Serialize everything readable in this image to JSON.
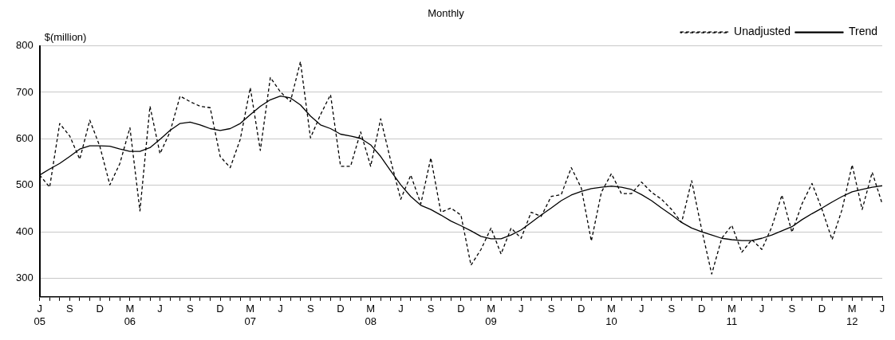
{
  "chart_data": {
    "type": "line",
    "title": "Monthly",
    "ylabel": "$(million)",
    "categories": [
      "J 05",
      null,
      null,
      "S",
      null,
      null,
      "D",
      null,
      null,
      "M 06",
      null,
      null,
      "J",
      null,
      null,
      "S",
      null,
      null,
      "D",
      null,
      null,
      "M 07",
      null,
      null,
      "J",
      null,
      null,
      "S",
      null,
      null,
      "D",
      null,
      null,
      "M 08",
      null,
      null,
      "J",
      null,
      null,
      "S",
      null,
      null,
      "D",
      null,
      null,
      "M 09",
      null,
      null,
      "J",
      null,
      null,
      "S",
      null,
      null,
      "D",
      null,
      null,
      "M 10",
      null,
      null,
      "J",
      null,
      null,
      "S",
      null,
      null,
      "D",
      null,
      null,
      "M 11",
      null,
      null,
      "J",
      null,
      null,
      "S",
      null,
      null,
      "D",
      null,
      null,
      "M 12",
      null,
      null,
      "J"
    ],
    "series": [
      {
        "name": "Unadjusted",
        "color": "#000000",
        "line_style": "dashed",
        "values": [
          522,
          496,
          633,
          606,
          556,
          640,
          584,
          501,
          547,
          624,
          445,
          670,
          568,
          615,
          692,
          680,
          670,
          667,
          562,
          538,
          599,
          710,
          575,
          732,
          701,
          680,
          766,
          602,
          652,
          695,
          541,
          541,
          615,
          541,
          643,
          553,
          470,
          522,
          460,
          559,
          442,
          451,
          436,
          328,
          362,
          408,
          352,
          408,
          386,
          442,
          433,
          476,
          480,
          538,
          494,
          380,
          485,
          525,
          482,
          482,
          507,
          485,
          470,
          448,
          420,
          510,
          405,
          309,
          386,
          414,
          356,
          383,
          362,
          411,
          479,
          399,
          460,
          504,
          448,
          383,
          448,
          544,
          448,
          528,
          460
        ]
      },
      {
        "name": "Trend",
        "color": "#000000",
        "line_style": "solid",
        "values": [
          522,
          535,
          547,
          562,
          578,
          585,
          585,
          584,
          578,
          573,
          573,
          581,
          599,
          618,
          633,
          636,
          630,
          622,
          618,
          622,
          633,
          652,
          670,
          684,
          692,
          688,
          673,
          649,
          630,
          622,
          610,
          606,
          601,
          587,
          562,
          531,
          501,
          476,
          457,
          448,
          436,
          423,
          413,
          402,
          390,
          385,
          385,
          393,
          404,
          420,
          436,
          451,
          467,
          479,
          487,
          493,
          496,
          498,
          496,
          491,
          480,
          467,
          451,
          436,
          420,
          408,
          400,
          393,
          386,
          383,
          381,
          381,
          386,
          393,
          402,
          411,
          426,
          439,
          451,
          464,
          476,
          486,
          491,
          496,
          499
        ]
      }
    ],
    "ylim": [
      260,
      800
    ],
    "yticks": [
      300,
      400,
      500,
      600,
      700,
      800
    ],
    "grid": "y",
    "legend": "top right",
    "marker": "none"
  }
}
